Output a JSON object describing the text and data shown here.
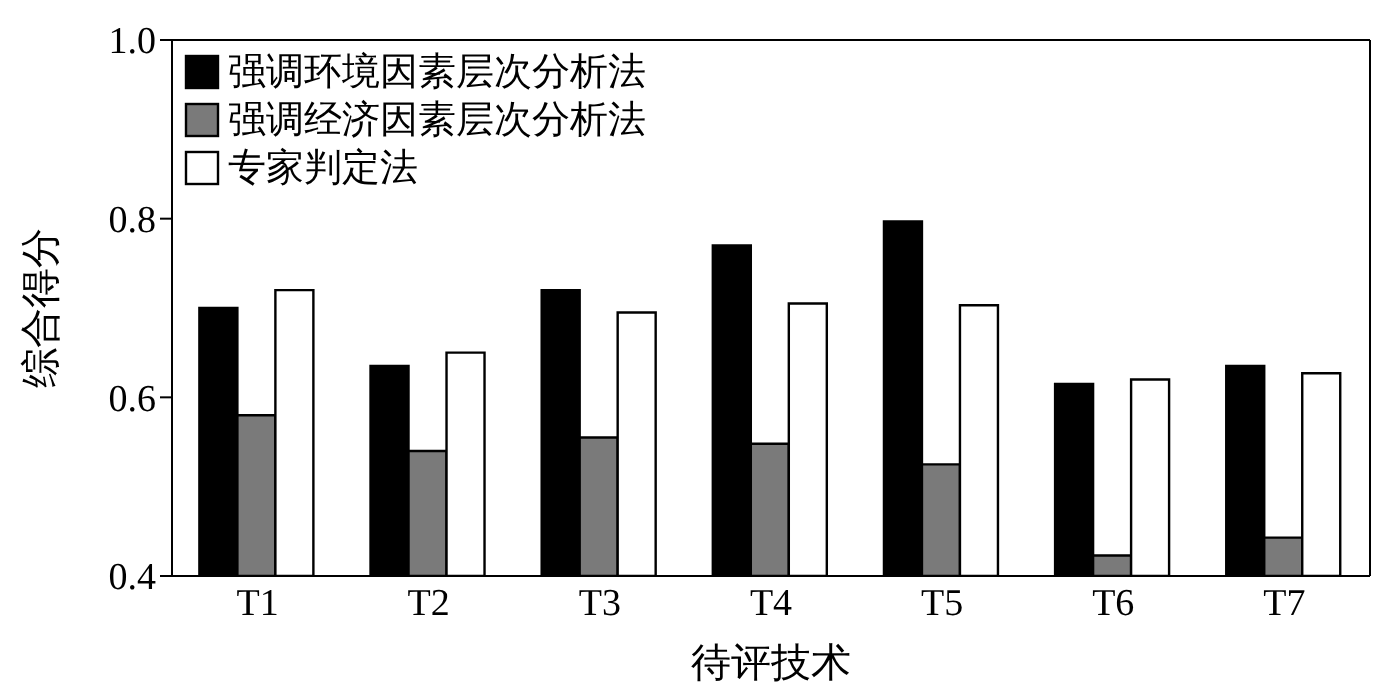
{
  "chart_data": {
    "type": "bar",
    "xlabel": "待评技术",
    "ylabel": "综合得分",
    "categories": [
      "T1",
      "T2",
      "T3",
      "T4",
      "T5",
      "T6",
      "T7"
    ],
    "series": [
      {
        "name": "强调环境因素层次分析法",
        "color": "#000000",
        "values": [
          0.7,
          0.635,
          0.72,
          0.77,
          0.797,
          0.615,
          0.635
        ]
      },
      {
        "name": "强调经济因素层次分析法",
        "color": "#7a7a7a",
        "values": [
          0.58,
          0.54,
          0.555,
          0.548,
          0.525,
          0.423,
          0.443
        ]
      },
      {
        "name": "专家判定法",
        "color": "#ffffff",
        "values": [
          0.72,
          0.65,
          0.695,
          0.705,
          0.703,
          0.62,
          0.627
        ]
      }
    ],
    "ylim": [
      0.4,
      1.0
    ],
    "yticks": [
      {
        "value": 0.4,
        "label": "0.4"
      },
      {
        "value": 0.6,
        "label": "0.6"
      },
      {
        "value": 0.8,
        "label": "0.8"
      },
      {
        "value": 1.0,
        "label": "1.0"
      }
    ],
    "grid": false,
    "legend": "top left"
  }
}
